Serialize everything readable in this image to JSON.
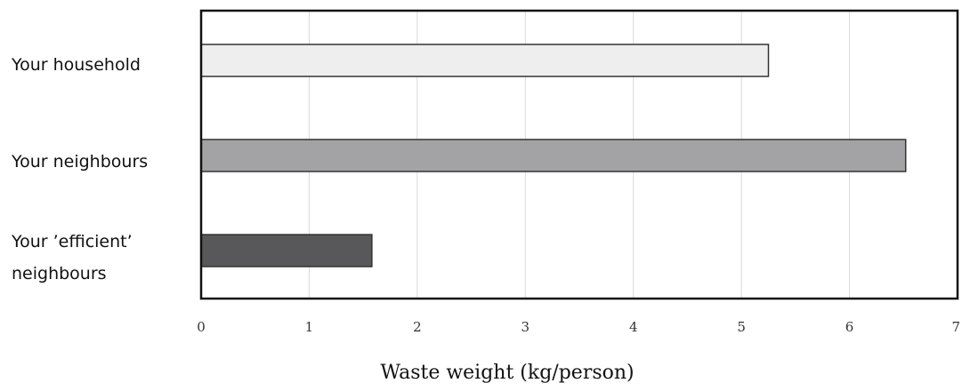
{
  "chart_data": {
    "type": "bar",
    "orientation": "horizontal",
    "categories": [
      [
        "Your household"
      ],
      [
        "Your neighbours"
      ],
      [
        "Your ’efficient’",
        "neighbours"
      ]
    ],
    "values": [
      5.25,
      6.52,
      1.58
    ],
    "colors": [
      "#eeeeee",
      "#a3a3a5",
      "#58585a"
    ],
    "xlabel": "Waste weight (kg/person)",
    "xlim": [
      0,
      7
    ],
    "xticks": [
      "0",
      "1",
      "2",
      "3",
      "4",
      "5",
      "6",
      "7"
    ],
    "grid": true
  }
}
